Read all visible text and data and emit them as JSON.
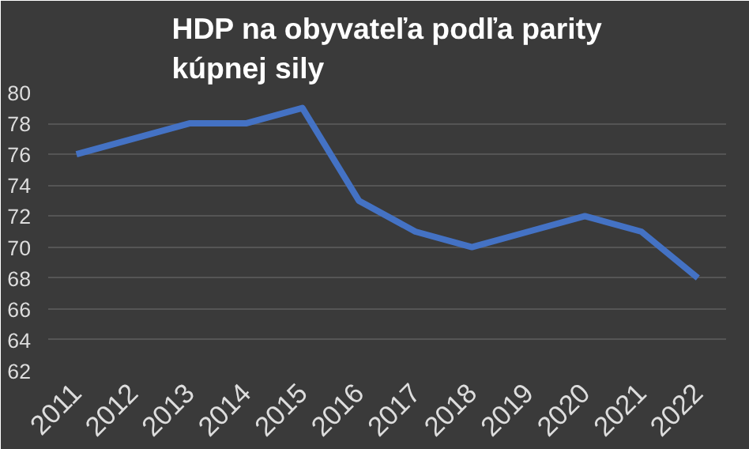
{
  "chart_data": {
    "type": "line",
    "title": "HDP na obyvateľa podľa parity\nkúpnej sily",
    "categories": [
      "2011",
      "2012",
      "2013",
      "2014",
      "2015",
      "2016",
      "2017",
      "2018",
      "2019",
      "2020",
      "2021",
      "2022"
    ],
    "series": [
      {
        "color": "#4472c4",
        "values": [
          76,
          77,
          78,
          78,
          79,
          73,
          71,
          70,
          71,
          72,
          71,
          68
        ]
      }
    ],
    "ylim": [
      62,
      80
    ],
    "yticks": [
      62,
      64,
      66,
      68,
      70,
      72,
      74,
      76,
      78,
      80
    ],
    "grid": "y",
    "marker": "none",
    "line_style": "solid"
  }
}
